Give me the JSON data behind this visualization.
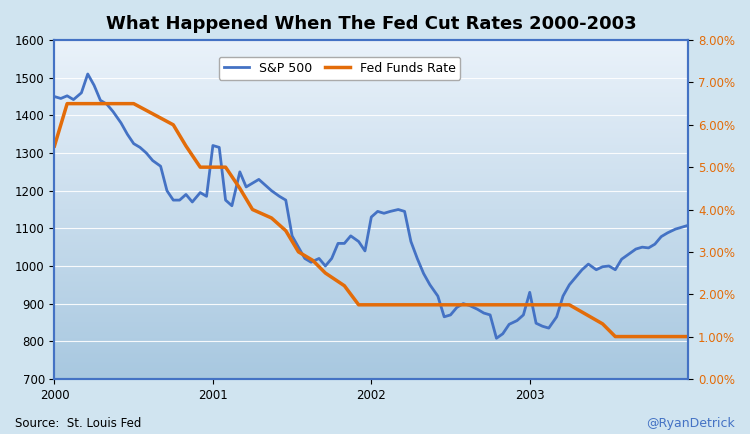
{
  "title": "What Happened When The Fed Cut Rates 2000-2003",
  "source_text": "Source:  St. Louis Fed",
  "watermark": "@RyanDetrick",
  "sp500_label": "S&P 500",
  "fed_label": "Fed Funds Rate",
  "sp500_color": "#4472C4",
  "fed_color": "#E36C09",
  "bg_top": "#EAF2FA",
  "bg_bottom": "#A8C8E0",
  "outer_bg": "#D0E4F0",
  "ylim_left": [
    700,
    1600
  ],
  "ylim_right": [
    0.0,
    0.08
  ],
  "yticks_left": [
    700,
    800,
    900,
    1000,
    1100,
    1200,
    1300,
    1400,
    1500,
    1600
  ],
  "yticks_right": [
    0.0,
    0.01,
    0.02,
    0.03,
    0.04,
    0.05,
    0.06,
    0.07,
    0.08
  ],
  "sp500_dates": [
    2000.0,
    2000.04,
    2000.08,
    2000.12,
    2000.17,
    2000.21,
    2000.25,
    2000.29,
    2000.33,
    2000.37,
    2000.42,
    2000.46,
    2000.5,
    2000.54,
    2000.58,
    2000.62,
    2000.67,
    2000.71,
    2000.75,
    2000.79,
    2000.83,
    2000.87,
    2000.92,
    2000.96,
    2001.0,
    2001.04,
    2001.08,
    2001.12,
    2001.17,
    2001.21,
    2001.25,
    2001.29,
    2001.33,
    2001.37,
    2001.42,
    2001.46,
    2001.5,
    2001.54,
    2001.58,
    2001.62,
    2001.67,
    2001.71,
    2001.75,
    2001.79,
    2001.83,
    2001.87,
    2001.92,
    2001.96,
    2002.0,
    2002.04,
    2002.08,
    2002.12,
    2002.17,
    2002.21,
    2002.25,
    2002.29,
    2002.33,
    2002.37,
    2002.42,
    2002.46,
    2002.5,
    2002.54,
    2002.58,
    2002.62,
    2002.67,
    2002.71,
    2002.75,
    2002.79,
    2002.83,
    2002.87,
    2002.92,
    2002.96,
    2003.0,
    2003.04,
    2003.08,
    2003.12,
    2003.17,
    2003.21,
    2003.25,
    2003.29,
    2003.33,
    2003.37,
    2003.42,
    2003.46,
    2003.5,
    2003.54,
    2003.58,
    2003.62,
    2003.67,
    2003.71,
    2003.75,
    2003.79,
    2003.83,
    2003.87,
    2003.92,
    2003.96,
    2004.0
  ],
  "sp500_values": [
    1450,
    1445,
    1452,
    1442,
    1460,
    1510,
    1480,
    1440,
    1430,
    1410,
    1380,
    1350,
    1325,
    1315,
    1300,
    1280,
    1265,
    1200,
    1175,
    1175,
    1190,
    1170,
    1195,
    1185,
    1320,
    1315,
    1175,
    1160,
    1250,
    1210,
    1220,
    1230,
    1215,
    1200,
    1185,
    1175,
    1080,
    1050,
    1020,
    1010,
    1020,
    1000,
    1020,
    1060,
    1060,
    1080,
    1065,
    1040,
    1130,
    1145,
    1140,
    1145,
    1150,
    1145,
    1065,
    1020,
    980,
    950,
    920,
    865,
    870,
    890,
    900,
    895,
    885,
    875,
    870,
    808,
    820,
    845,
    855,
    870,
    930,
    848,
    840,
    835,
    865,
    920,
    950,
    970,
    990,
    1005,
    990,
    998,
    1000,
    990,
    1018,
    1030,
    1045,
    1050,
    1048,
    1058,
    1078,
    1088,
    1098,
    1103,
    1108
  ],
  "fed_dates": [
    2000.0,
    2000.08,
    2000.17,
    2000.25,
    2000.5,
    2000.75,
    2000.83,
    2000.92,
    2001.0,
    2001.08,
    2001.17,
    2001.25,
    2001.37,
    2001.46,
    2001.54,
    2001.63,
    2001.71,
    2001.83,
    2001.92,
    2002.0,
    2002.25,
    2002.46,
    2002.67,
    2002.83,
    2003.0,
    2003.25,
    2003.46,
    2003.54,
    2003.67,
    2003.83,
    2003.92,
    2004.0
  ],
  "fed_values": [
    0.055,
    0.065,
    0.065,
    0.065,
    0.065,
    0.06,
    0.055,
    0.05,
    0.05,
    0.05,
    0.045,
    0.04,
    0.038,
    0.035,
    0.03,
    0.028,
    0.025,
    0.022,
    0.0175,
    0.0175,
    0.0175,
    0.0175,
    0.0175,
    0.0175,
    0.0175,
    0.0175,
    0.013,
    0.01,
    0.01,
    0.01,
    0.01,
    0.01
  ]
}
